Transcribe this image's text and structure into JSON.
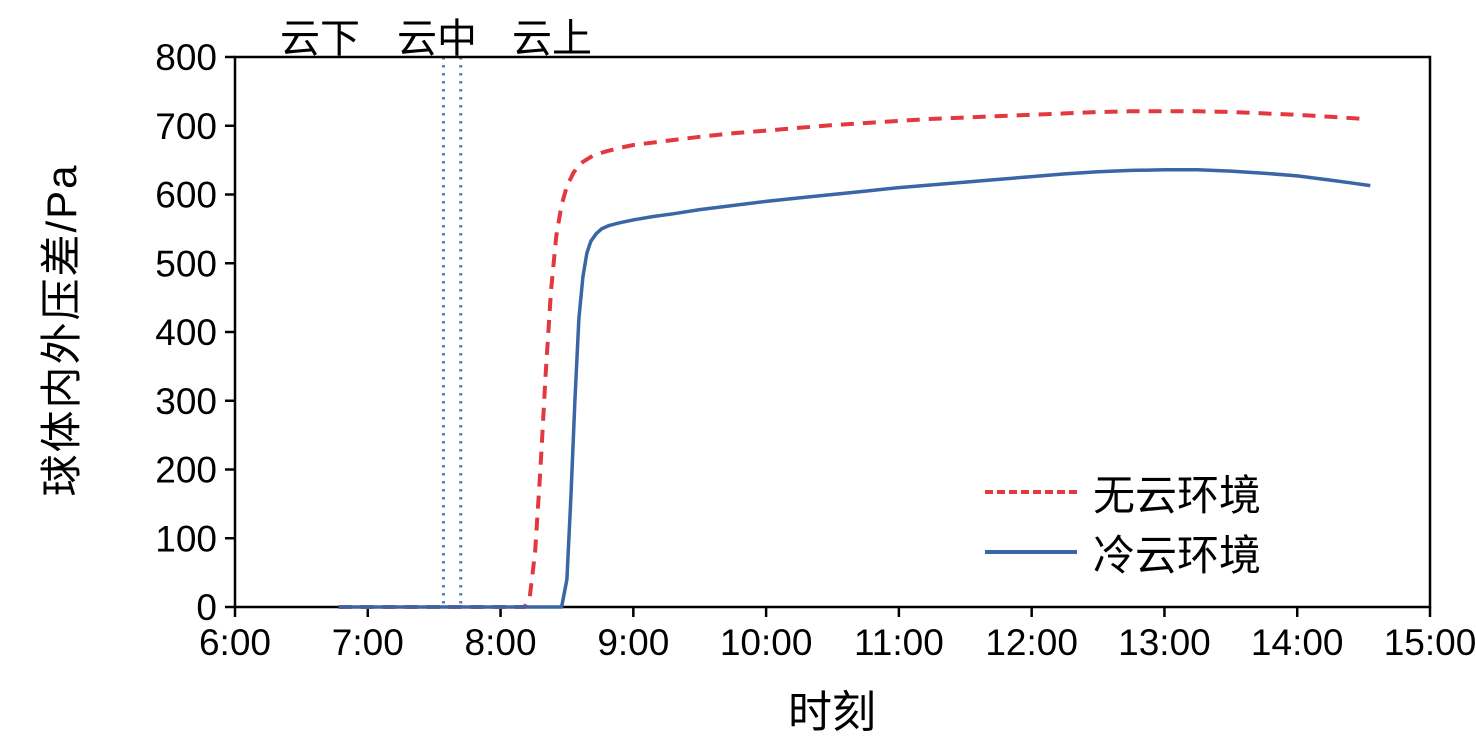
{
  "chart_data": {
    "type": "line",
    "title": "",
    "xlabel": "时刻",
    "ylabel": "球体内外压差/Pa",
    "xlim_hours": [
      6,
      15
    ],
    "ylim": [
      0,
      800
    ],
    "x_ticks": [
      {
        "hour": 6,
        "label": "6:00"
      },
      {
        "hour": 7,
        "label": "7:00"
      },
      {
        "hour": 8,
        "label": "8:00"
      },
      {
        "hour": 9,
        "label": "9:00"
      },
      {
        "hour": 10,
        "label": "10:00"
      },
      {
        "hour": 11,
        "label": "11:00"
      },
      {
        "hour": 12,
        "label": "12:00"
      },
      {
        "hour": 13,
        "label": "13:00"
      },
      {
        "hour": 14,
        "label": "14:00"
      },
      {
        "hour": 15,
        "label": "15:00"
      }
    ],
    "y_ticks": [
      0,
      100,
      200,
      300,
      400,
      500,
      600,
      700,
      800
    ],
    "grid": false,
    "legend_position": "lower right",
    "phase_labels": [
      {
        "text": "云下",
        "hour": 6.66
      },
      {
        "text": "云中",
        "hour": 7.52
      },
      {
        "text": "云上",
        "hour": 8.37
      }
    ],
    "vlines": {
      "hours": [
        7.57,
        7.7
      ],
      "color": "#4f81bd",
      "style": "dotted",
      "span": "full-height"
    },
    "series": [
      {
        "name": "无云环境",
        "color": "#e2383f",
        "style": "dashed",
        "points": [
          [
            6.78,
            0
          ],
          [
            7.2,
            0
          ],
          [
            7.6,
            0
          ],
          [
            8.0,
            0
          ],
          [
            8.18,
            0
          ],
          [
            8.22,
            15
          ],
          [
            8.26,
            80
          ],
          [
            8.3,
            200
          ],
          [
            8.34,
            340
          ],
          [
            8.38,
            460
          ],
          [
            8.42,
            540
          ],
          [
            8.46,
            585
          ],
          [
            8.5,
            612
          ],
          [
            8.55,
            632
          ],
          [
            8.6,
            645
          ],
          [
            8.7,
            657
          ],
          [
            8.8,
            663
          ],
          [
            8.9,
            668
          ],
          [
            9.0,
            672
          ],
          [
            9.25,
            678
          ],
          [
            9.5,
            684
          ],
          [
            9.75,
            689
          ],
          [
            10.0,
            693
          ],
          [
            10.25,
            697
          ],
          [
            10.5,
            701
          ],
          [
            10.75,
            704
          ],
          [
            11.0,
            707
          ],
          [
            11.25,
            710
          ],
          [
            11.5,
            712
          ],
          [
            11.75,
            714
          ],
          [
            12.0,
            716
          ],
          [
            12.25,
            718
          ],
          [
            12.5,
            720
          ],
          [
            12.75,
            721
          ],
          [
            13.0,
            721
          ],
          [
            13.25,
            721
          ],
          [
            13.5,
            720
          ],
          [
            13.75,
            718
          ],
          [
            14.0,
            716
          ],
          [
            14.25,
            713
          ],
          [
            14.5,
            710
          ]
        ]
      },
      {
        "name": "冷云环境",
        "color": "#3a66a7",
        "style": "solid",
        "points": [
          [
            6.78,
            0
          ],
          [
            7.2,
            0
          ],
          [
            7.6,
            0
          ],
          [
            8.0,
            0
          ],
          [
            8.4,
            0
          ],
          [
            8.46,
            0
          ],
          [
            8.5,
            40
          ],
          [
            8.53,
            160
          ],
          [
            8.56,
            300
          ],
          [
            8.59,
            420
          ],
          [
            8.62,
            480
          ],
          [
            8.65,
            515
          ],
          [
            8.68,
            532
          ],
          [
            8.72,
            543
          ],
          [
            8.76,
            550
          ],
          [
            8.82,
            555
          ],
          [
            8.9,
            559
          ],
          [
            9.0,
            563
          ],
          [
            9.15,
            568
          ],
          [
            9.3,
            572
          ],
          [
            9.5,
            578
          ],
          [
            9.75,
            584
          ],
          [
            10.0,
            590
          ],
          [
            10.25,
            595
          ],
          [
            10.5,
            600
          ],
          [
            10.75,
            605
          ],
          [
            11.0,
            610
          ],
          [
            11.25,
            614
          ],
          [
            11.5,
            618
          ],
          [
            11.75,
            622
          ],
          [
            12.0,
            626
          ],
          [
            12.25,
            630
          ],
          [
            12.5,
            633
          ],
          [
            12.75,
            635
          ],
          [
            13.0,
            636
          ],
          [
            13.25,
            636
          ],
          [
            13.5,
            634
          ],
          [
            13.75,
            631
          ],
          [
            14.0,
            627
          ],
          [
            14.25,
            621
          ],
          [
            14.4,
            617
          ],
          [
            14.55,
            613
          ]
        ]
      }
    ]
  },
  "legend": {
    "items": [
      {
        "label": "无云环境",
        "style": "dashed"
      },
      {
        "label": "冷云环境",
        "style": "solid"
      }
    ]
  }
}
